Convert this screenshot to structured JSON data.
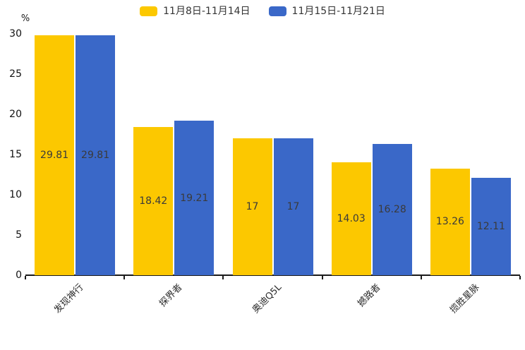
{
  "chart_data": {
    "type": "bar",
    "title": "",
    "categories": [
      "发现神行",
      "探界者",
      "奥迪Q5L",
      "撼路者",
      "揽胜星脉"
    ],
    "series": [
      {
        "name": "11月8日-11月14日",
        "color": "#FCC800",
        "values": [
          29.81,
          18.42,
          17,
          14.03,
          13.26
        ]
      },
      {
        "name": "11月15日-11月21日",
        "color": "#3A68C8",
        "values": [
          29.81,
          19.21,
          17,
          16.28,
          12.11
        ]
      }
    ],
    "ylabel_unit": "%",
    "ylim": [
      0,
      30
    ],
    "yticks": [
      0,
      5,
      10,
      15,
      20,
      25,
      30
    ],
    "grid": false,
    "legend_position": "top-center",
    "value_labels": "inside-center",
    "xtick_rotation": 45
  }
}
